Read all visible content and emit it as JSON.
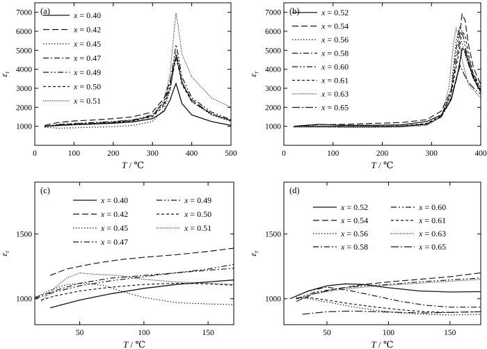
{
  "chart_data": [
    {
      "type": "line",
      "panel_label": "(a)",
      "xlabel": "T / ℃",
      "ylabel": "εr",
      "xlim": [
        0,
        500
      ],
      "ylim": [
        0,
        7500
      ],
      "xticks": [
        0,
        100,
        200,
        300,
        400,
        500
      ],
      "yticks": [
        1000,
        2000,
        3000,
        4000,
        5000,
        6000,
        7000
      ],
      "legend_position": "top-left",
      "series": [
        {
          "name": "x = 0.40",
          "style": "solid",
          "x": [
            25,
            60,
            100,
            150,
            200,
            250,
            300,
            330,
            345,
            355,
            360,
            365,
            375,
            400,
            450,
            500
          ],
          "y": [
            1000,
            1040,
            1080,
            1120,
            1160,
            1230,
            1400,
            1800,
            2400,
            3000,
            3250,
            2900,
            2200,
            1600,
            1250,
            1050
          ]
        },
        {
          "name": "x = 0.42",
          "style": "longdash",
          "x": [
            25,
            60,
            100,
            150,
            200,
            250,
            300,
            330,
            345,
            355,
            360,
            365,
            375,
            400,
            450,
            500
          ],
          "y": [
            1050,
            1200,
            1280,
            1330,
            1400,
            1500,
            1750,
            2500,
            3400,
            4300,
            4700,
            4300,
            3300,
            2400,
            1650,
            1300
          ]
        },
        {
          "name": "x = 0.45",
          "style": "dotted",
          "x": [
            25,
            60,
            100,
            150,
            200,
            250,
            300,
            330,
            345,
            355,
            360,
            365,
            375,
            400,
            450,
            500
          ],
          "y": [
            950,
            900,
            920,
            950,
            980,
            1050,
            1250,
            1900,
            2900,
            4200,
            4900,
            4500,
            3400,
            2300,
            1600,
            1250
          ]
        },
        {
          "name": "x = 0.47",
          "style": "dashdot",
          "x": [
            25,
            60,
            100,
            150,
            200,
            250,
            300,
            330,
            345,
            355,
            360,
            365,
            375,
            400,
            450,
            500
          ],
          "y": [
            980,
            1080,
            1130,
            1180,
            1230,
            1320,
            1560,
            2200,
            3100,
            4200,
            4800,
            4400,
            3300,
            2300,
            1650,
            1300
          ]
        },
        {
          "name": "x = 0.49",
          "style": "dashdotdot",
          "x": [
            25,
            60,
            100,
            150,
            200,
            250,
            300,
            330,
            345,
            355,
            360,
            365,
            375,
            400,
            450,
            500
          ],
          "y": [
            1000,
            1100,
            1150,
            1200,
            1250,
            1340,
            1600,
            2300,
            3300,
            4600,
            5300,
            4800,
            3600,
            2500,
            1750,
            1350
          ]
        },
        {
          "name": "x = 0.50",
          "style": "shortdash",
          "x": [
            25,
            60,
            100,
            150,
            200,
            250,
            300,
            330,
            345,
            355,
            360,
            365,
            375,
            400,
            450,
            500
          ],
          "y": [
            1000,
            1060,
            1100,
            1150,
            1200,
            1280,
            1500,
            2100,
            3000,
            4100,
            4500,
            4200,
            3200,
            2300,
            1650,
            1300
          ]
        },
        {
          "name": "x = 0.51",
          "style": "finedot",
          "x": [
            25,
            60,
            100,
            150,
            200,
            250,
            300,
            330,
            345,
            355,
            360,
            365,
            375,
            400,
            450,
            500
          ],
          "y": [
            1000,
            1050,
            1090,
            1140,
            1200,
            1290,
            1550,
            2400,
            3800,
            6000,
            6950,
            6300,
            4800,
            3600,
            2500,
            2000
          ]
        }
      ]
    },
    {
      "type": "line",
      "panel_label": "(b)",
      "xlabel": "T / ℃",
      "ylabel": "εr",
      "xlim": [
        0,
        400
      ],
      "ylim": [
        0,
        7500
      ],
      "xticks": [
        0,
        100,
        200,
        300,
        400
      ],
      "yticks": [
        1000,
        2000,
        3000,
        4000,
        5000,
        6000,
        7000
      ],
      "legend_position": "top-left",
      "series": [
        {
          "name": "x = 0.52",
          "style": "solid",
          "x": [
            20,
            70,
            120,
            180,
            240,
            290,
            320,
            340,
            355,
            362,
            368,
            375,
            385,
            400
          ],
          "y": [
            1000,
            1100,
            1050,
            1050,
            1080,
            1250,
            1600,
            2400,
            4000,
            5100,
            5000,
            4400,
            3600,
            2800
          ]
        },
        {
          "name": "x = 0.54",
          "style": "longdash",
          "x": [
            20,
            70,
            120,
            180,
            240,
            290,
            320,
            340,
            355,
            362,
            368,
            375,
            385,
            400
          ],
          "y": [
            1000,
            1080,
            1100,
            1150,
            1200,
            1350,
            1800,
            2900,
            5200,
            6900,
            6600,
            5300,
            4100,
            3200
          ]
        },
        {
          "name": "x = 0.56",
          "style": "dotted",
          "x": [
            20,
            70,
            120,
            180,
            240,
            290,
            320,
            340,
            350,
            355,
            362,
            370,
            385,
            400
          ],
          "y": [
            1000,
            1000,
            980,
            980,
            1000,
            1100,
            1500,
            3000,
            5500,
            6000,
            5400,
            4600,
            3500,
            2800
          ]
        },
        {
          "name": "x = 0.58",
          "style": "dashdot",
          "x": [
            20,
            70,
            120,
            180,
            240,
            290,
            320,
            340,
            355,
            362,
            368,
            375,
            385,
            400
          ],
          "y": [
            1000,
            1000,
            980,
            980,
            1000,
            1100,
            1500,
            2500,
            4000,
            5000,
            4900,
            4300,
            3500,
            2800
          ]
        },
        {
          "name": "x = 0.60",
          "style": "dashdotdot",
          "x": [
            20,
            70,
            120,
            180,
            240,
            290,
            320,
            340,
            350,
            357,
            362,
            370,
            385,
            400
          ],
          "y": [
            1000,
            1000,
            980,
            980,
            1000,
            1100,
            1500,
            2800,
            5000,
            6200,
            6000,
            5000,
            3800,
            3000
          ]
        },
        {
          "name": "x = 0.61",
          "style": "shortdash",
          "x": [
            20,
            70,
            120,
            180,
            240,
            290,
            320,
            340,
            355,
            362,
            368,
            375,
            385,
            400
          ],
          "y": [
            1000,
            1000,
            990,
            990,
            1020,
            1150,
            1550,
            2700,
            4800,
            6000,
            5800,
            4800,
            3700,
            2900
          ]
        },
        {
          "name": "x = 0.63",
          "style": "finedot",
          "x": [
            20,
            70,
            120,
            180,
            240,
            290,
            320,
            335,
            345,
            350,
            355,
            362,
            375,
            400
          ],
          "y": [
            950,
            950,
            940,
            940,
            960,
            1050,
            1500,
            3000,
            5400,
            6200,
            5600,
            4500,
            3200,
            2500
          ]
        },
        {
          "name": "x = 0.65",
          "style": "longdashdot",
          "x": [
            20,
            70,
            120,
            180,
            240,
            290,
            320,
            340,
            352,
            358,
            365,
            375,
            390,
            400
          ],
          "y": [
            1000,
            1000,
            990,
            990,
            1010,
            1120,
            1500,
            2400,
            3600,
            4200,
            3800,
            3300,
            2900,
            2700
          ]
        }
      ]
    },
    {
      "type": "line",
      "panel_label": "(c)",
      "xlabel": "T / ℃",
      "ylabel": "εr",
      "xlim": [
        15,
        170
      ],
      "ylim": [
        800,
        1900
      ],
      "xticks": [
        50,
        100,
        150
      ],
      "yticks": [
        1000,
        1500
      ],
      "legend_position": "top",
      "series": [
        {
          "name": "x = 0.40",
          "style": "solid",
          "x": [
            27,
            50,
            75,
            100,
            125,
            150,
            170
          ],
          "y": [
            930,
            990,
            1040,
            1080,
            1110,
            1130,
            1145
          ]
        },
        {
          "name": "x = 0.42",
          "style": "longdash",
          "x": [
            27,
            40,
            60,
            80,
            100,
            125,
            150,
            170
          ],
          "y": [
            1180,
            1230,
            1270,
            1300,
            1320,
            1340,
            1365,
            1390
          ]
        },
        {
          "name": "x = 0.45",
          "style": "dotted",
          "x": [
            16,
            25,
            40,
            55,
            70,
            85,
            100,
            125,
            150,
            170
          ],
          "y": [
            1010,
            1060,
            1110,
            1120,
            1100,
            1050,
            1010,
            970,
            960,
            955
          ]
        },
        {
          "name": "x = 0.47",
          "style": "dashdot",
          "x": [
            15,
            30,
            50,
            75,
            100,
            125,
            150,
            170
          ],
          "y": [
            1010,
            1060,
            1120,
            1160,
            1180,
            1200,
            1220,
            1235
          ]
        },
        {
          "name": "x = 0.49",
          "style": "dashdotdot",
          "x": [
            15,
            30,
            50,
            75,
            100,
            125,
            150,
            170
          ],
          "y": [
            1000,
            1050,
            1100,
            1140,
            1170,
            1200,
            1230,
            1265
          ]
        },
        {
          "name": "x = 0.50",
          "style": "shortdash",
          "x": [
            20,
            30,
            50,
            75,
            100,
            125,
            150,
            170
          ],
          "y": [
            990,
            1020,
            1060,
            1090,
            1110,
            1120,
            1115,
            1105
          ]
        },
        {
          "name": "x = 0.51",
          "style": "finedot",
          "x": [
            20,
            30,
            40,
            50,
            60,
            80,
            100,
            125,
            150,
            170
          ],
          "y": [
            980,
            1080,
            1160,
            1200,
            1190,
            1180,
            1150,
            1130,
            1120,
            1110
          ]
        }
      ]
    },
    {
      "type": "line",
      "panel_label": "(d)",
      "xlabel": "T / ℃",
      "ylabel": "εr",
      "xlim": [
        15,
        175
      ],
      "ylim": [
        800,
        1900
      ],
      "xticks": [
        50,
        100,
        150
      ],
      "yticks": [
        1000,
        1500
      ],
      "legend_position": "top",
      "series": [
        {
          "name": "x = 0.52",
          "style": "solid",
          "x": [
            20,
            35,
            50,
            65,
            80,
            100,
            125,
            150,
            175
          ],
          "y": [
            1000,
            1060,
            1100,
            1115,
            1110,
            1085,
            1060,
            1052,
            1055
          ]
        },
        {
          "name": "x = 0.54",
          "style": "longdash",
          "x": [
            25,
            40,
            60,
            80,
            100,
            125,
            150,
            175
          ],
          "y": [
            980,
            1040,
            1080,
            1110,
            1130,
            1150,
            1170,
            1200
          ]
        },
        {
          "name": "x = 0.56",
          "style": "dotted",
          "x": [
            25,
            35,
            50,
            70,
            90,
            110,
            130,
            150,
            175
          ],
          "y": [
            1010,
            1000,
            975,
            940,
            910,
            890,
            880,
            875,
            880
          ]
        },
        {
          "name": "x = 0.58",
          "style": "dashdot",
          "x": [
            25,
            35,
            50,
            70,
            90,
            110,
            130,
            150,
            175
          ],
          "y": [
            1020,
            1060,
            1090,
            1060,
            1020,
            980,
            950,
            935,
            935
          ]
        },
        {
          "name": "x = 0.60",
          "style": "dashdotdot",
          "x": [
            25,
            40,
            60,
            80,
            100,
            125,
            150,
            175
          ],
          "y": [
            1000,
            1050,
            1080,
            1100,
            1110,
            1130,
            1145,
            1160
          ]
        },
        {
          "name": "x = 0.61",
          "style": "shortdash",
          "x": [
            25,
            35,
            50,
            70,
            90,
            110,
            130,
            150,
            175
          ],
          "y": [
            1000,
            1010,
            990,
            960,
            935,
            915,
            900,
            895,
            900
          ]
        },
        {
          "name": "x = 0.63",
          "style": "finedot",
          "x": [
            25,
            40,
            60,
            80,
            100,
            125,
            150,
            175
          ],
          "y": [
            1000,
            1040,
            1070,
            1090,
            1105,
            1120,
            1135,
            1150
          ]
        },
        {
          "name": "x = 0.65",
          "style": "longdashdot",
          "x": [
            30,
            50,
            70,
            90,
            110,
            130,
            150,
            175
          ],
          "y": [
            880,
            900,
            905,
            900,
            895,
            890,
            895,
            900
          ]
        }
      ]
    }
  ]
}
